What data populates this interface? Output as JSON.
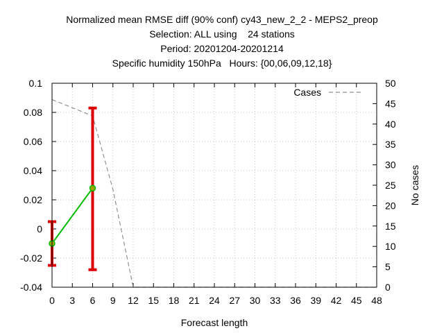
{
  "chart_data": {
    "type": "line",
    "title_lines": [
      "Normalized mean RMSE diff (90% conf) cy43_new_2_2 - MEPS2_preop",
      "Selection: ALL using    24 stations",
      "Period: 20201204-20201214",
      "Specific humidity 150hPa   Hours: {00,06,09,12,18}"
    ],
    "xlabel": "Forecast length",
    "ylabel": "",
    "y2label": "No cases",
    "xlim": [
      0,
      48
    ],
    "ylim": [
      -0.04,
      0.1
    ],
    "y2lim": [
      0,
      50
    ],
    "x_ticks": [
      "0",
      "3",
      "6",
      "9",
      "12",
      "15",
      "18",
      "21",
      "24",
      "27",
      "30",
      "33",
      "36",
      "39",
      "42",
      "45",
      "48"
    ],
    "y_ticks": [
      "-0.04",
      "-0.02",
      "0",
      "0.02",
      "0.04",
      "0.06",
      "0.08",
      "0.1"
    ],
    "y2_ticks": [
      "0",
      "5",
      "10",
      "15",
      "20",
      "25",
      "30",
      "35",
      "40",
      "45",
      "50"
    ],
    "grid": true,
    "legend": {
      "label": "Cases",
      "position": "top-right"
    },
    "series": [
      {
        "name": "RMSE diff",
        "color": "#00bb00",
        "marker_color": "#a0a000",
        "errorbar_color": "#dd0000",
        "x": [
          0,
          6
        ],
        "y": [
          -0.01,
          0.028
        ],
        "lower": [
          -0.025,
          -0.028
        ],
        "upper": [
          0.005,
          0.083
        ]
      },
      {
        "name": "Cases",
        "axis": "y2",
        "color": "#909090",
        "style": "dashed",
        "x": [
          0,
          3,
          6,
          9,
          12,
          15,
          18,
          21,
          24,
          27,
          30,
          33,
          36,
          39,
          42,
          45,
          48
        ],
        "y": [
          46,
          44,
          42,
          24,
          0,
          0,
          0,
          0,
          0,
          0,
          0,
          0,
          0,
          0,
          0,
          0,
          0
        ]
      }
    ]
  }
}
